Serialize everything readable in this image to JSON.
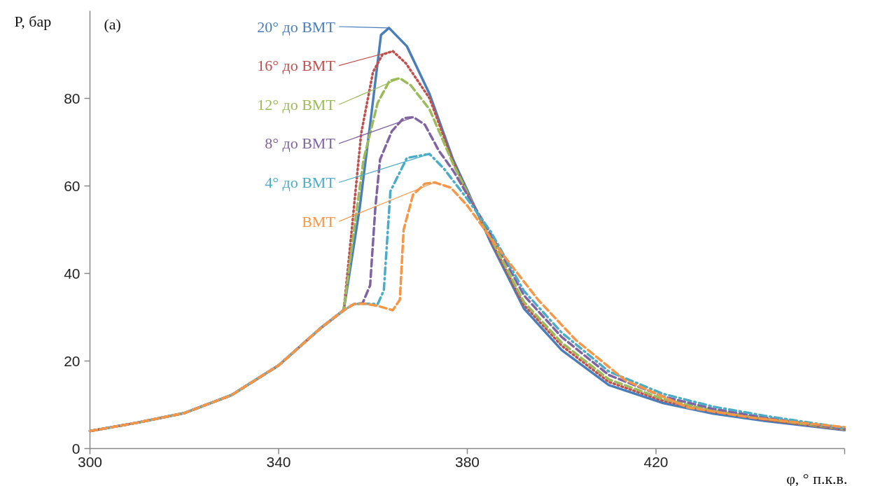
{
  "chart_data": {
    "type": "line",
    "xlabel": "φ, ° п.к.в.",
    "ylabel": "P, бар",
    "annotations": [
      "(a)"
    ],
    "xlim": [
      300,
      460
    ],
    "xticks": [
      300,
      340,
      380,
      420,
      {
        "value": 460,
        "label": null
      }
    ],
    "ylim": [
      0,
      100
    ],
    "yticks": [
      0,
      20,
      40,
      60,
      80
    ],
    "grid": false,
    "legend": "top left",
    "series": [
      {
        "name": "20° до BMT",
        "color": "#4a7ebb",
        "line_style": "solid",
        "x": [
          300,
          310,
          320,
          330,
          340,
          349,
          353.8,
          357.2,
          359.7,
          361.7,
          363.4,
          367.2,
          372,
          377,
          380,
          385,
          392,
          400,
          410,
          421.5,
          432,
          443,
          460
        ],
        "values": [
          4.0,
          5.9,
          8.1,
          12.2,
          19.0,
          27.6,
          31.6,
          55.1,
          76.7,
          94.5,
          96.1,
          91.9,
          81.0,
          66.0,
          59.0,
          47.0,
          32.0,
          22.5,
          14.5,
          10.4,
          8.0,
          6.3,
          4.2
        ]
      },
      {
        "name": "16° до BMT",
        "color": "#c0504d",
        "line_style": "dotted",
        "x": [
          300,
          310,
          320,
          330,
          340,
          349,
          353.8,
          355.5,
          357.5,
          360,
          362,
          364.2,
          367,
          372,
          377,
          380,
          385,
          392,
          400,
          410,
          421.5,
          432,
          443,
          460
        ],
        "values": [
          4.0,
          5.9,
          8.1,
          12.2,
          19.0,
          27.6,
          31.6,
          50,
          72,
          86,
          90,
          90.8,
          88,
          80,
          65.5,
          58.5,
          47.5,
          32.8,
          23.5,
          15.2,
          10.9,
          8.4,
          6.6,
          4.3
        ]
      },
      {
        "name": "12° до BMT",
        "color": "#9bbb59",
        "line_style": "dashed",
        "x": [
          300,
          310,
          320,
          330,
          340,
          349,
          353.8,
          356,
          358,
          361,
          363.5,
          365.7,
          368,
          372,
          377,
          380,
          385,
          392,
          400,
          410,
          421.5,
          432,
          443,
          460
        ],
        "values": [
          4.0,
          5.9,
          8.1,
          12.2,
          19.0,
          27.6,
          31.6,
          50,
          66,
          79,
          84,
          84.6,
          83,
          77.5,
          65,
          58.5,
          48,
          33.5,
          24.2,
          15.8,
          11.3,
          8.7,
          6.8,
          4.4
        ]
      },
      {
        "name": "8° до BMT",
        "color": "#8064a2",
        "line_style": "dashed",
        "x": [
          300,
          310,
          320,
          330,
          340,
          349,
          353.8,
          356,
          357.8,
          359.4,
          360.5,
          361.5,
          364,
          366.5,
          368.6,
          371,
          374,
          377,
          380,
          385,
          392,
          400,
          410,
          421.5,
          432,
          443,
          460
        ],
        "values": [
          4.0,
          5.9,
          8.1,
          12.2,
          19.0,
          27.6,
          31.6,
          33.0,
          33.2,
          37.3,
          55,
          66,
          72.5,
          75.5,
          75.7,
          74,
          68,
          63.5,
          58,
          49,
          35,
          25.5,
          16.8,
          11.9,
          9.1,
          7.1,
          4.5
        ]
      },
      {
        "name": "4° до BMT",
        "color": "#4bacc6",
        "line_style": "dashdot",
        "x": [
          300,
          310,
          320,
          330,
          340,
          349,
          353.8,
          356,
          358.2,
          361,
          362.3,
          363.7,
          367.2,
          372,
          375,
          380,
          385,
          392,
          400,
          410,
          421.5,
          432,
          443,
          460
        ],
        "values": [
          4.0,
          5.9,
          8.1,
          12.2,
          19.0,
          27.6,
          31.6,
          33.0,
          33.1,
          33.0,
          36.1,
          58.8,
          66.4,
          67.3,
          64,
          57,
          49.5,
          36,
          26.5,
          17.6,
          12.5,
          9.6,
          7.5,
          4.7
        ]
      },
      {
        "name": "BMT",
        "color": "#f79646",
        "line_style": "dashed",
        "x": [
          300,
          310,
          320,
          330,
          340,
          349,
          353.8,
          356,
          358.2,
          361,
          364.2,
          365.7,
          366.5,
          368.5,
          371,
          373.1,
          376.5,
          380,
          387,
          395,
          403,
          413.5,
          426.7,
          440,
          456,
          460
        ],
        "values": [
          4.0,
          5.9,
          8.1,
          12.2,
          19.0,
          27.6,
          31.6,
          33.0,
          33.1,
          32.6,
          31.6,
          34,
          50,
          58,
          60.5,
          60.8,
          59.6,
          55.5,
          45.1,
          34,
          24.8,
          15.6,
          9.4,
          7.1,
          5.3,
          4.9
        ]
      }
    ]
  }
}
